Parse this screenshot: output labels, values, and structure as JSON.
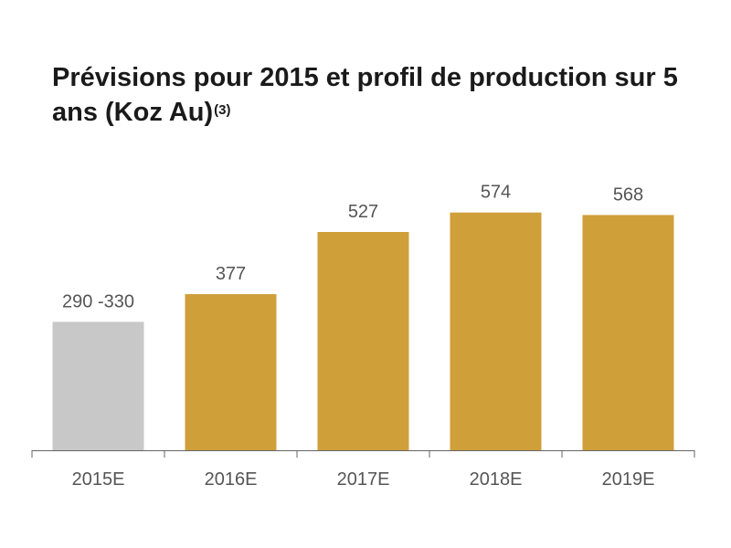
{
  "chart_data": {
    "type": "bar",
    "title": "Prévisions pour 2015 et profil de production sur 5 ans (Koz Au)",
    "title_superscript": "(3)",
    "xlabel": "",
    "ylabel": "",
    "categories": [
      "2015E",
      "2016E",
      "2017E",
      "2018E",
      "2019E"
    ],
    "values": [
      310,
      377,
      527,
      574,
      568
    ],
    "value_labels": [
      "290 -330",
      "377",
      "527",
      "574",
      "568"
    ],
    "colors": [
      "#c8c8c8",
      "#cf9f3a",
      "#cf9f3a",
      "#cf9f3a",
      "#cf9f3a"
    ],
    "ylim": [
      0,
      600
    ],
    "grid": false,
    "legend": "none"
  }
}
